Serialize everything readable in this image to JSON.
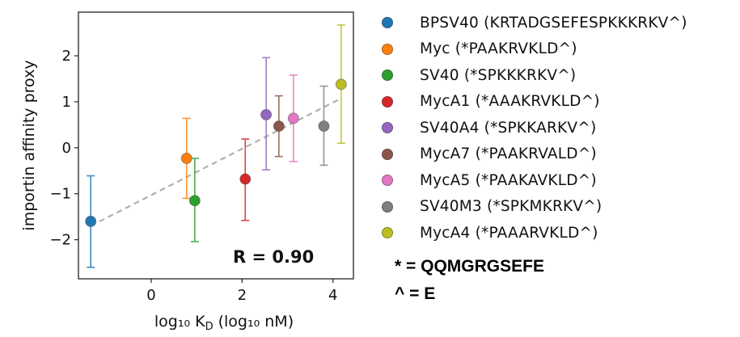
{
  "chart_data": {
    "type": "scatter",
    "title": "",
    "xlabel": "log₁₀ K",
    "xlabel_sub": "D",
    "xlabel_rest": " (log₁₀ nM)",
    "ylabel": "importin affinity proxy",
    "xlim": [
      -1.6,
      4.45
    ],
    "ylim": [
      -2.85,
      2.95
    ],
    "xticks": [
      0,
      2,
      4
    ],
    "xtick_labels": [
      "0",
      "2",
      "4"
    ],
    "yticks": [
      -2,
      -1,
      0,
      1,
      2
    ],
    "ytick_labels": [
      "−2",
      "−1",
      "0",
      "1",
      "2"
    ],
    "grid": false,
    "legend_position": "right-outside",
    "annotation": "R = 0.90",
    "fit_line": {
      "style": "dashed",
      "color": "#b0b0b0",
      "x": [
        -1.33,
        4.17
      ],
      "y": [
        -1.7,
        1.07
      ]
    },
    "series": [
      {
        "name": "BPSV40 (KRTADGSEFESPKKKRKV^)",
        "color": "#1f77b4",
        "x": -1.33,
        "y": -1.6,
        "y_err_low": -2.6,
        "y_err_high": -0.61
      },
      {
        "name": "Myc (*PAAKRVKLD^)",
        "color": "#ff7f0e",
        "x": 0.78,
        "y": -0.23,
        "y_err_low": -1.1,
        "y_err_high": 0.64
      },
      {
        "name": "SV40 (*SPKKKRKV^)",
        "color": "#2ca02c",
        "x": 0.96,
        "y": -1.15,
        "y_err_low": -2.04,
        "y_err_high": -0.23
      },
      {
        "name": "MycA1 (*AAAKRVKLD^)",
        "color": "#d62728",
        "x": 2.07,
        "y": -0.68,
        "y_err_low": -1.58,
        "y_err_high": 0.19
      },
      {
        "name": "SV40A4 (*SPKKARKV^)",
        "color": "#9467bd",
        "x": 2.53,
        "y": 0.72,
        "y_err_low": -0.48,
        "y_err_high": 1.96
      },
      {
        "name": "MycA7 (*PAAKRVALD^)",
        "color": "#8c564b",
        "x": 2.81,
        "y": 0.47,
        "y_err_low": -0.19,
        "y_err_high": 1.13
      },
      {
        "name": "MycA5 (*PAAKAVKLD^)",
        "color": "#e377c2",
        "x": 3.13,
        "y": 0.64,
        "y_err_low": -0.3,
        "y_err_high": 1.58
      },
      {
        "name": "SV40M3 (*SPKMKRKV^)",
        "color": "#7f7f7f",
        "x": 3.8,
        "y": 0.47,
        "y_err_low": -0.38,
        "y_err_high": 1.34
      },
      {
        "name": "MycA4 (*PAAARVKLD^)",
        "color": "#bcbd22",
        "x": 4.18,
        "y": 1.38,
        "y_err_low": 0.1,
        "y_err_high": 2.67
      }
    ]
  },
  "notes": {
    "star": "* = QQMGRGSEFE",
    "caret": "^ = E"
  }
}
